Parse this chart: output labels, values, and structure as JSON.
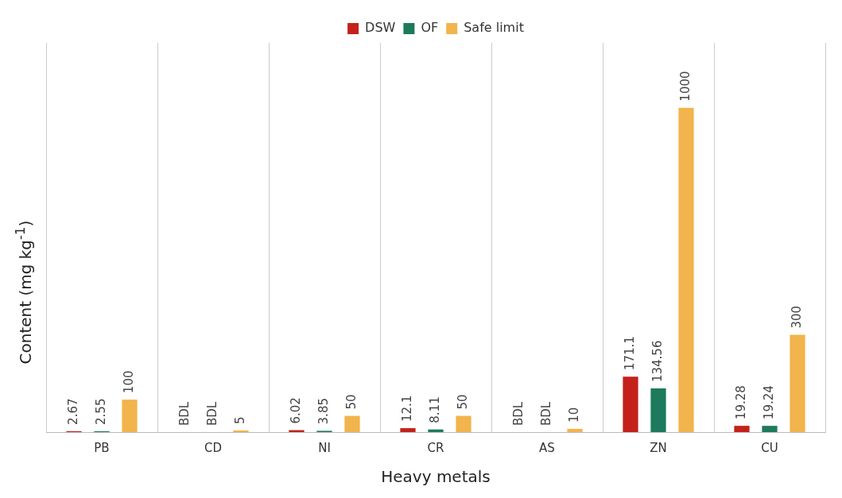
{
  "chart_data": {
    "type": "bar",
    "xlabel": "Heavy metals",
    "ylabel": "Content (mg kg$^{-1}$)",
    "categories": [
      "PB",
      "CD",
      "NI",
      "CR",
      "AS",
      "ZN",
      "CU"
    ],
    "series": [
      {
        "name": "DSW",
        "color": "#c4211b",
        "values": [
          2.67,
          null,
          6.02,
          12.1,
          null,
          171.1,
          19.28
        ],
        "value_labels": [
          "2.67",
          "BDL",
          "6.02",
          "12.1",
          "BDL",
          "171.1",
          "19.28"
        ]
      },
      {
        "name": "OF",
        "color": "#1d7a5c",
        "values": [
          2.55,
          null,
          3.85,
          8.11,
          null,
          134.56,
          19.24
        ],
        "value_labels": [
          "2.55",
          "BDL",
          "3.85",
          "8.11",
          "BDL",
          "134.56",
          "19.24"
        ]
      },
      {
        "name": "Safe limit",
        "color": "#f2b44c",
        "values": [
          100,
          5,
          50,
          50,
          10,
          1000,
          300
        ],
        "value_labels": [
          "100",
          "5",
          "50",
          "50",
          "10",
          "1000",
          "300"
        ]
      }
    ],
    "grid": "x",
    "legend": "top"
  }
}
